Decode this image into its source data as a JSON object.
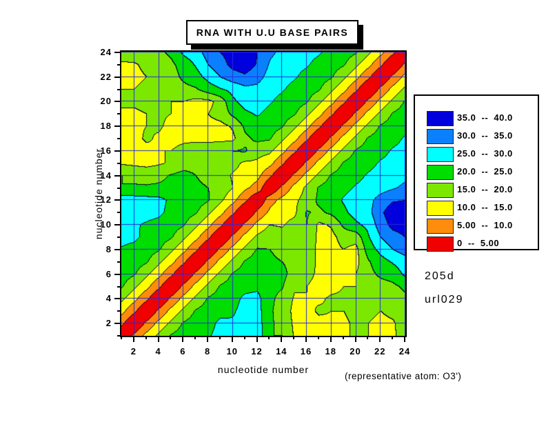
{
  "title": "RNA WITH U.U BASE PAIRS",
  "axes": {
    "x_label": "nucleotide number",
    "y_label": "nucleotide number",
    "min": 1,
    "max": 24,
    "major_ticks": [
      2,
      4,
      6,
      8,
      10,
      12,
      14,
      16,
      18,
      20,
      22,
      24
    ],
    "minor_ticks": [
      1,
      3,
      5,
      7,
      9,
      11,
      13,
      15,
      17,
      19,
      21,
      23
    ]
  },
  "legend": {
    "bins": [
      {
        "label": "35.0  --  40.0",
        "color": "#0000dd"
      },
      {
        "label": "30.0  --  35.0",
        "color": "#0a80ff"
      },
      {
        "label": "25.0  --  30.0",
        "color": "#00ffff"
      },
      {
        "label": "20.0  --  25.0",
        "color": "#00dd00"
      },
      {
        "label": "15.0  --  20.0",
        "color": "#7ce800"
      },
      {
        "label": "10.0  --  15.0",
        "color": "#ffff00"
      },
      {
        "label": "5.00  --  10.0",
        "color": "#ff8c0a"
      },
      {
        "label": "0  --  5.00",
        "color": "#f00000"
      }
    ]
  },
  "annotations": {
    "id_line1": "205d",
    "id_line2": "url029",
    "footnote": "(representative atom: O3')"
  },
  "style": {
    "grid_color": "#2828dc",
    "contour_line_color": "#000033",
    "frame_color": "#000000",
    "background": "#ffffff"
  },
  "chart_data": {
    "type": "heatmap",
    "subtype": "filled-contour-distance-matrix",
    "title": "RNA WITH U.U BASE PAIRS",
    "xlabel": "nucleotide number",
    "ylabel": "nucleotide number",
    "x_range": [
      1,
      24
    ],
    "y_range": [
      1,
      24
    ],
    "levels": [
      0,
      5,
      10,
      15,
      20,
      25,
      30,
      35,
      40
    ],
    "level_colors": [
      "#f00000",
      "#ff8c0a",
      "#ffff00",
      "#7ce800",
      "#00dd00",
      "#00ffff",
      "#0a80ff",
      "#0000dd"
    ],
    "grid": "blue gridlines at even nucleotide numbers",
    "legend_position": "right",
    "matrix_note": "rows are y = nucleotide 1..24 (bottom to top), columns are x = nucleotide 1..24; values are distances in Angstroms, symmetric, 0 on diagonal",
    "matrix_rows_y1_to_y24": [
      [
        0,
        6,
        11.5,
        16,
        20.5,
        22.5,
        23.5,
        24.5,
        26.5,
        27,
        28,
        28.5,
        20,
        20,
        14.5,
        14.5,
        13.5,
        14,
        14.5,
        15.5,
        15,
        13.5,
        14,
        18
      ],
      [
        6,
        0,
        6,
        11.5,
        16,
        20.5,
        22.5,
        23.5,
        26,
        25.5,
        27,
        27.5,
        20.5,
        19,
        14,
        13.5,
        14,
        14.5,
        14.5,
        15.5,
        15,
        14,
        14.5,
        17.5
      ],
      [
        11.5,
        6,
        0,
        6,
        11.5,
        16,
        20.5,
        22.5,
        23.5,
        24.5,
        26.5,
        27,
        20.5,
        18.5,
        13.5,
        14,
        15.5,
        15,
        15,
        16,
        16,
        15,
        16,
        18
      ],
      [
        16,
        11.5,
        6,
        0,
        6,
        11.5,
        16,
        20.5,
        22.5,
        23.5,
        26,
        26.5,
        21,
        18.5,
        14.5,
        15,
        14.5,
        15.5,
        15.5,
        15,
        16.5,
        16,
        17,
        19
      ],
      [
        20.5,
        16,
        11.5,
        6,
        0,
        6,
        11.5,
        16,
        20.5,
        22.5,
        23.5,
        24,
        21.5,
        20.5,
        15.5,
        15,
        13.5,
        14,
        15,
        15,
        17,
        18,
        19,
        21
      ],
      [
        22.5,
        20.5,
        16,
        11.5,
        6,
        0,
        6,
        11.5,
        16,
        20.5,
        22.5,
        23.5,
        22,
        21.5,
        18,
        16.5,
        14,
        13.5,
        13.5,
        15,
        18.5,
        21,
        22,
        26
      ],
      [
        23.5,
        22.5,
        20.5,
        16,
        11.5,
        6,
        0,
        6,
        11.5,
        16,
        20.5,
        22.5,
        21,
        20,
        18.5,
        17.5,
        14,
        14,
        13.5,
        13.5,
        19.5,
        23,
        25.5,
        28
      ],
      [
        24.5,
        23.5,
        22.5,
        20.5,
        16,
        11.5,
        6,
        0,
        6,
        11.5,
        16,
        20.5,
        20,
        18.5,
        18.5,
        18.5,
        13.5,
        13.5,
        15,
        13.5,
        22.5,
        26.5,
        30,
        32
      ],
      [
        26.5,
        26,
        23.5,
        22.5,
        20.5,
        16,
        11.5,
        6,
        0,
        6,
        11.5,
        16,
        18,
        17,
        18,
        19.5,
        13.5,
        13.5,
        17,
        17,
        24.5,
        30,
        33,
        35
      ],
      [
        27,
        25.5,
        24.5,
        23.5,
        22.5,
        20.5,
        16,
        11.5,
        6,
        0,
        6,
        11.5,
        15,
        14.5,
        16.5,
        20,
        14,
        15.5,
        21,
        24,
        26.5,
        32.5,
        36.5,
        37
      ],
      [
        28,
        27,
        26.5,
        26,
        23.5,
        22.5,
        20.5,
        16,
        11.5,
        6,
        0,
        6,
        11,
        13.5,
        14,
        20.5,
        19,
        21,
        24,
        27,
        28.5,
        34,
        38,
        38
      ],
      [
        28.5,
        27.5,
        27,
        26.5,
        24,
        23.5,
        22.5,
        20.5,
        16,
        11.5,
        6,
        0,
        8,
        11.5,
        14,
        17,
        21,
        23,
        25.5,
        27.5,
        28.5,
        32,
        34.5,
        35
      ],
      [
        20,
        20.5,
        20.5,
        21,
        21.5,
        22,
        21,
        20,
        18,
        15,
        11,
        8,
        0,
        6,
        11.5,
        16,
        20.5,
        22.5,
        23.5,
        25.5,
        27,
        28,
        29.5,
        31
      ],
      [
        20,
        19,
        18.5,
        18.5,
        20.5,
        21.5,
        20,
        18.5,
        17,
        14.5,
        13.5,
        11.5,
        6,
        0,
        6,
        11.5,
        16,
        20.5,
        22.5,
        23.5,
        25.5,
        27,
        27.5,
        29
      ],
      [
        14.5,
        14,
        13.5,
        14.5,
        15.5,
        18,
        18.5,
        18.5,
        18,
        16.5,
        14,
        14,
        11.5,
        6,
        0,
        6,
        11.5,
        16,
        20.5,
        22.5,
        23.5,
        25.5,
        26.5,
        27.5
      ],
      [
        14.5,
        13.5,
        14,
        15,
        15,
        16.5,
        17.5,
        18.5,
        19.5,
        20,
        20.5,
        17,
        16,
        11.5,
        6,
        0,
        6,
        11.5,
        16,
        20.5,
        22.5,
        23.5,
        25.5,
        26.5
      ],
      [
        13.5,
        14,
        15.5,
        14.5,
        13.5,
        14,
        14,
        13.5,
        13.5,
        14,
        19,
        21,
        20.5,
        16,
        11.5,
        6,
        0,
        6,
        11.5,
        16,
        20.5,
        22.5,
        23.5,
        25.5
      ],
      [
        14,
        14.5,
        15,
        15.5,
        14,
        13.5,
        14,
        13.5,
        13.5,
        15.5,
        21,
        23,
        22.5,
        20.5,
        16,
        11.5,
        6,
        0,
        6,
        11.5,
        16,
        20.5,
        22.5,
        23.5
      ],
      [
        14.5,
        14.5,
        15,
        15.5,
        15,
        13.5,
        13.5,
        15,
        17,
        21,
        24,
        25.5,
        23.5,
        22.5,
        20.5,
        16,
        11.5,
        6,
        0,
        6,
        11.5,
        16,
        20.5,
        22.5
      ],
      [
        15.5,
        15.5,
        16,
        15,
        15,
        15,
        13.5,
        13.5,
        17,
        24,
        27,
        27.5,
        25.5,
        23.5,
        22.5,
        20.5,
        16,
        11.5,
        6,
        0,
        6,
        11.5,
        16,
        20.5
      ],
      [
        15,
        15,
        16,
        16.5,
        17,
        18.5,
        19.5,
        22.5,
        24.5,
        26.5,
        28.5,
        28.5,
        27,
        25.5,
        23.5,
        22.5,
        20.5,
        16,
        11.5,
        6,
        0,
        6,
        11.5,
        16
      ],
      [
        13.5,
        14,
        15,
        16,
        18,
        21,
        23,
        26.5,
        30,
        32.5,
        34,
        32,
        28,
        27,
        25.5,
        23.5,
        22.5,
        20.5,
        16,
        11.5,
        6,
        0,
        6,
        11.5
      ],
      [
        14,
        14.5,
        16,
        17,
        19,
        22,
        25.5,
        30,
        33,
        36.5,
        38,
        34.5,
        29.5,
        27.5,
        26.5,
        25.5,
        23.5,
        22.5,
        20.5,
        16,
        11.5,
        6,
        0,
        6
      ],
      [
        18,
        17.5,
        18,
        19,
        21,
        26,
        28,
        32,
        35,
        37,
        38,
        35,
        31,
        29,
        27.5,
        26.5,
        25.5,
        23.5,
        22.5,
        20.5,
        16,
        11.5,
        6,
        0
      ]
    ]
  }
}
